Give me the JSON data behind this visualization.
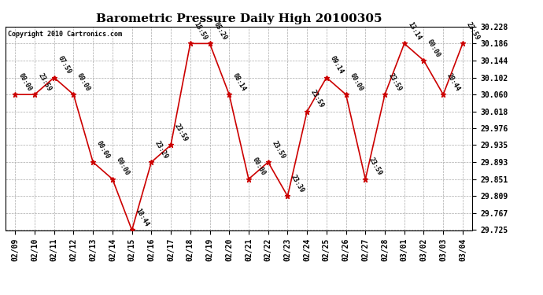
{
  "title": "Barometric Pressure Daily High 20100305",
  "copyright": "Copyright 2010 Cartronics.com",
  "x_labels": [
    "02/09",
    "02/10",
    "02/11",
    "02/12",
    "02/13",
    "02/14",
    "02/15",
    "02/16",
    "02/17",
    "02/18",
    "02/19",
    "02/20",
    "02/21",
    "02/22",
    "02/23",
    "02/24",
    "02/25",
    "02/26",
    "02/27",
    "02/28",
    "03/01",
    "03/02",
    "03/03",
    "03/04"
  ],
  "y_values": [
    30.06,
    30.06,
    30.102,
    30.06,
    29.893,
    29.851,
    29.725,
    29.893,
    29.935,
    30.186,
    30.186,
    30.06,
    29.851,
    29.893,
    29.809,
    30.018,
    30.102,
    30.06,
    29.851,
    30.06,
    30.186,
    30.144,
    30.06,
    30.186
  ],
  "point_labels": [
    "00:00",
    "23:59",
    "07:59",
    "00:00",
    "00:00",
    "00:00",
    "18:44",
    "23:29",
    "23:59",
    "18:59",
    "05:29",
    "08:14",
    "00:00",
    "23:59",
    "23:39",
    "23:59",
    "09:14",
    "00:00",
    "23:59",
    "23:59",
    "13:14",
    "00:00",
    "20:44",
    "23:59"
  ],
  "line_color": "#cc0000",
  "marker_color": "#cc0000",
  "bg_color": "#ffffff",
  "grid_color": "#aaaaaa",
  "ylim_min": 29.725,
  "ylim_max": 30.228,
  "yticks": [
    29.725,
    29.767,
    29.809,
    29.851,
    29.893,
    29.935,
    29.976,
    30.018,
    30.06,
    30.102,
    30.144,
    30.186,
    30.228
  ],
  "title_fontsize": 11,
  "label_fontsize": 6.0,
  "tick_fontsize": 7,
  "copyright_fontsize": 6
}
